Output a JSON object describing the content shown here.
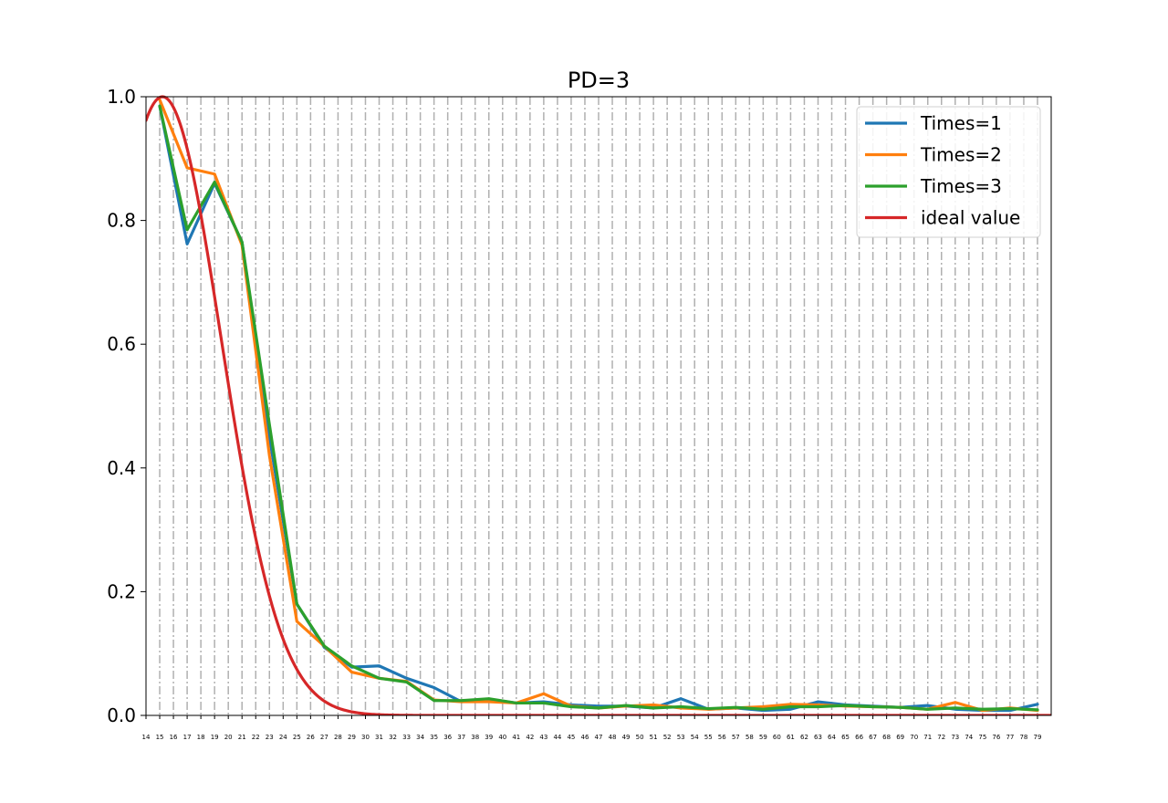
{
  "chart_data": {
    "type": "line",
    "title": "PD=3",
    "xlabel": "",
    "ylabel": "",
    "xlim": [
      14,
      80
    ],
    "ylim": [
      0,
      1.0
    ],
    "x_ticks": [
      14,
      15,
      16,
      17,
      18,
      19,
      20,
      21,
      22,
      23,
      24,
      25,
      26,
      27,
      28,
      29,
      30,
      31,
      32,
      33,
      34,
      35,
      36,
      37,
      38,
      39,
      40,
      41,
      42,
      43,
      44,
      45,
      46,
      47,
      48,
      49,
      50,
      51,
      52,
      53,
      54,
      55,
      56,
      57,
      58,
      59,
      60,
      61,
      62,
      63,
      64,
      65,
      66,
      67,
      68,
      69,
      70,
      71,
      72,
      73,
      74,
      75,
      76,
      77,
      78,
      79
    ],
    "y_ticks": [
      0.0,
      0.2,
      0.4,
      0.6,
      0.8,
      1.0
    ],
    "y_tick_labels": [
      "0.0",
      "0.2",
      "0.4",
      "0.6",
      "0.8",
      "1.0"
    ],
    "grid": {
      "x": true,
      "y": false,
      "style": "dashdot",
      "color": "#b0b0b0"
    },
    "legend_position": "upper-right",
    "x_even": [
      15,
      17,
      19,
      21,
      23,
      25,
      27,
      29,
      31,
      33,
      35,
      37,
      39,
      41,
      43,
      45,
      47,
      49,
      51,
      53,
      55,
      57,
      59,
      61,
      63,
      65,
      67,
      69,
      71,
      73,
      75,
      77,
      79
    ],
    "series": [
      {
        "name": "Times=1",
        "color": "#1f77b4",
        "x": [
          15,
          17,
          19,
          21,
          23,
          25,
          27,
          29,
          31,
          33,
          35,
          37,
          39,
          41,
          43,
          45,
          47,
          49,
          51,
          53,
          55,
          57,
          59,
          61,
          63,
          65,
          67,
          69,
          71,
          73,
          75,
          77,
          79
        ],
        "y": [
          0.985,
          0.762,
          0.86,
          0.765,
          0.45,
          0.18,
          0.11,
          0.078,
          0.08,
          0.06,
          0.045,
          0.022,
          0.026,
          0.02,
          0.022,
          0.017,
          0.015,
          0.015,
          0.012,
          0.027,
          0.01,
          0.012,
          0.008,
          0.01,
          0.022,
          0.017,
          0.015,
          0.013,
          0.016,
          0.01,
          0.008,
          0.008,
          0.018
        ]
      },
      {
        "name": "Times=2",
        "color": "#ff7f0e",
        "x": [
          15,
          17,
          19,
          21,
          23,
          25,
          27,
          29,
          31,
          33,
          35,
          37,
          39,
          41,
          43,
          45,
          47,
          49,
          51,
          53,
          55,
          57,
          59,
          61,
          63,
          65,
          67,
          69,
          71,
          73,
          75,
          77,
          79
        ],
        "y": [
          0.995,
          0.885,
          0.875,
          0.76,
          0.42,
          0.152,
          0.112,
          0.07,
          0.06,
          0.055,
          0.025,
          0.022,
          0.022,
          0.02,
          0.035,
          0.015,
          0.012,
          0.015,
          0.017,
          0.012,
          0.01,
          0.012,
          0.014,
          0.018,
          0.017,
          0.015,
          0.014,
          0.013,
          0.01,
          0.021,
          0.008,
          0.012,
          0.008
        ]
      },
      {
        "name": "Times=3",
        "color": "#2ca02c",
        "x": [
          15,
          17,
          19,
          21,
          23,
          25,
          27,
          29,
          31,
          33,
          35,
          37,
          39,
          41,
          43,
          45,
          47,
          49,
          51,
          53,
          55,
          57,
          59,
          61,
          63,
          65,
          67,
          69,
          71,
          73,
          75,
          77,
          79
        ],
        "y": [
          0.985,
          0.785,
          0.862,
          0.765,
          0.47,
          0.18,
          0.112,
          0.08,
          0.06,
          0.054,
          0.024,
          0.024,
          0.027,
          0.02,
          0.02,
          0.014,
          0.012,
          0.016,
          0.012,
          0.014,
          0.011,
          0.013,
          0.01,
          0.014,
          0.014,
          0.016,
          0.014,
          0.013,
          0.01,
          0.012,
          0.01,
          0.011,
          0.009
        ]
      },
      {
        "name": "ideal value",
        "color": "#d62728",
        "function": "gaussian",
        "mean": 15.2,
        "sigma": 4.3,
        "x_range": [
          14,
          80
        ]
      }
    ]
  }
}
